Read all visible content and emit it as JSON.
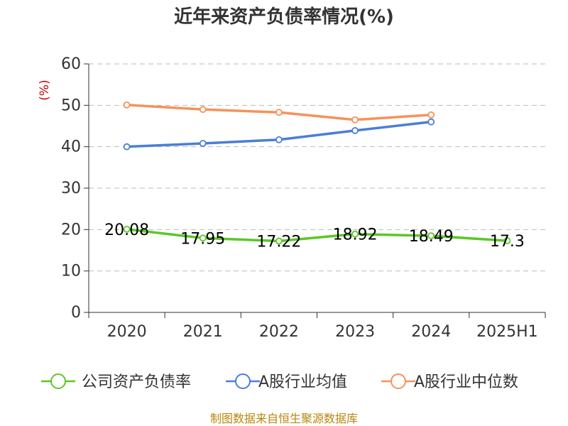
{
  "chart_data": {
    "type": "line",
    "title": "近年来资产负债率情况(%)",
    "ylabel": "(%)",
    "xlabel": "",
    "categories": [
      "2020",
      "2021",
      "2022",
      "2023",
      "2024",
      "2025H1"
    ],
    "ylim": [
      0,
      60
    ],
    "yticks": [
      0,
      10,
      20,
      30,
      40,
      50,
      60
    ],
    "grid": true,
    "legend_position": "bottom",
    "series": [
      {
        "name": "公司资产负债率",
        "color": "#5bc726",
        "values": [
          20.08,
          17.95,
          17.22,
          18.92,
          18.49,
          17.3
        ],
        "labels": [
          "20.08",
          "17.95",
          "17.22",
          "18.92",
          "18.49",
          "17.3"
        ]
      },
      {
        "name": "A股行业均值",
        "color": "#4a7fd6",
        "values": [
          40.0,
          40.8,
          41.7,
          43.9,
          46.0,
          null
        ]
      },
      {
        "name": "A股行业中位数",
        "color": "#f5925a",
        "values": [
          50.1,
          49.0,
          48.3,
          46.5,
          47.7,
          null
        ]
      }
    ]
  },
  "source": "制图数据来自恒生聚源数据库"
}
